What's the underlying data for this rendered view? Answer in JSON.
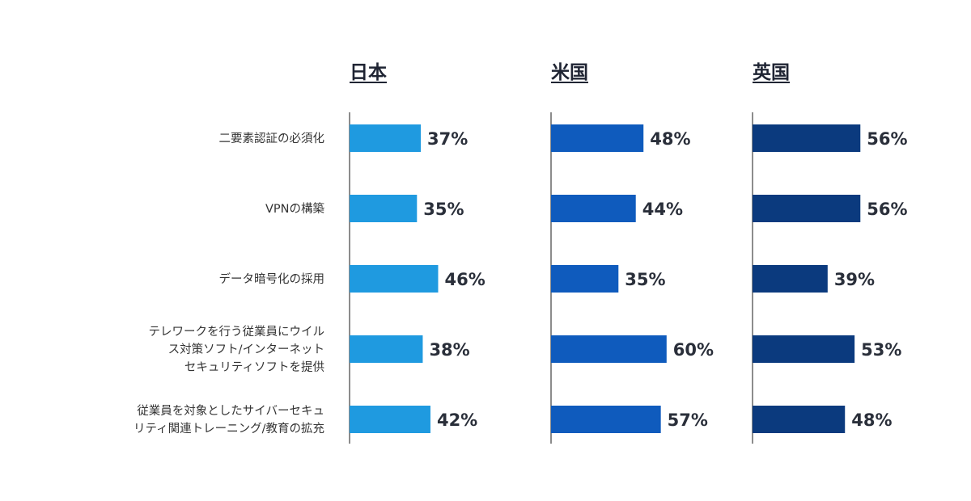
{
  "chart_data": {
    "type": "bar",
    "orientation": "horizontal",
    "categories": [
      [
        "二要素認証の必須化"
      ],
      [
        "VPNの構築"
      ],
      [
        "データ暗号化の採用"
      ],
      [
        "テレワークを行う従業員にウイル",
        "ス対策ソフト/インターネット",
        "セキュリティソフトを提供"
      ],
      [
        "従業員を対象としたサイバーセキュ",
        "リティ関連トレーニング/教育の拡充"
      ]
    ],
    "series": [
      {
        "name": "日本",
        "color": "#1f9ae0",
        "values": [
          37,
          35,
          46,
          38,
          42
        ],
        "labels": [
          "37%",
          "35%",
          "46%",
          "38%",
          "42%"
        ]
      },
      {
        "name": "米国",
        "color": "#0f5bbd",
        "values": [
          48,
          44,
          35,
          60,
          57
        ],
        "labels": [
          "48%",
          "44%",
          "35%",
          "60%",
          "57%"
        ]
      },
      {
        "name": "英国",
        "color": "#0b3a7e",
        "values": [
          56,
          56,
          39,
          53,
          48
        ],
        "labels": [
          "56%",
          "56%",
          "39%",
          "53%",
          "48%"
        ]
      }
    ],
    "unit": "%",
    "xlim": [
      0,
      100
    ],
    "grid": false,
    "legend": "none"
  }
}
